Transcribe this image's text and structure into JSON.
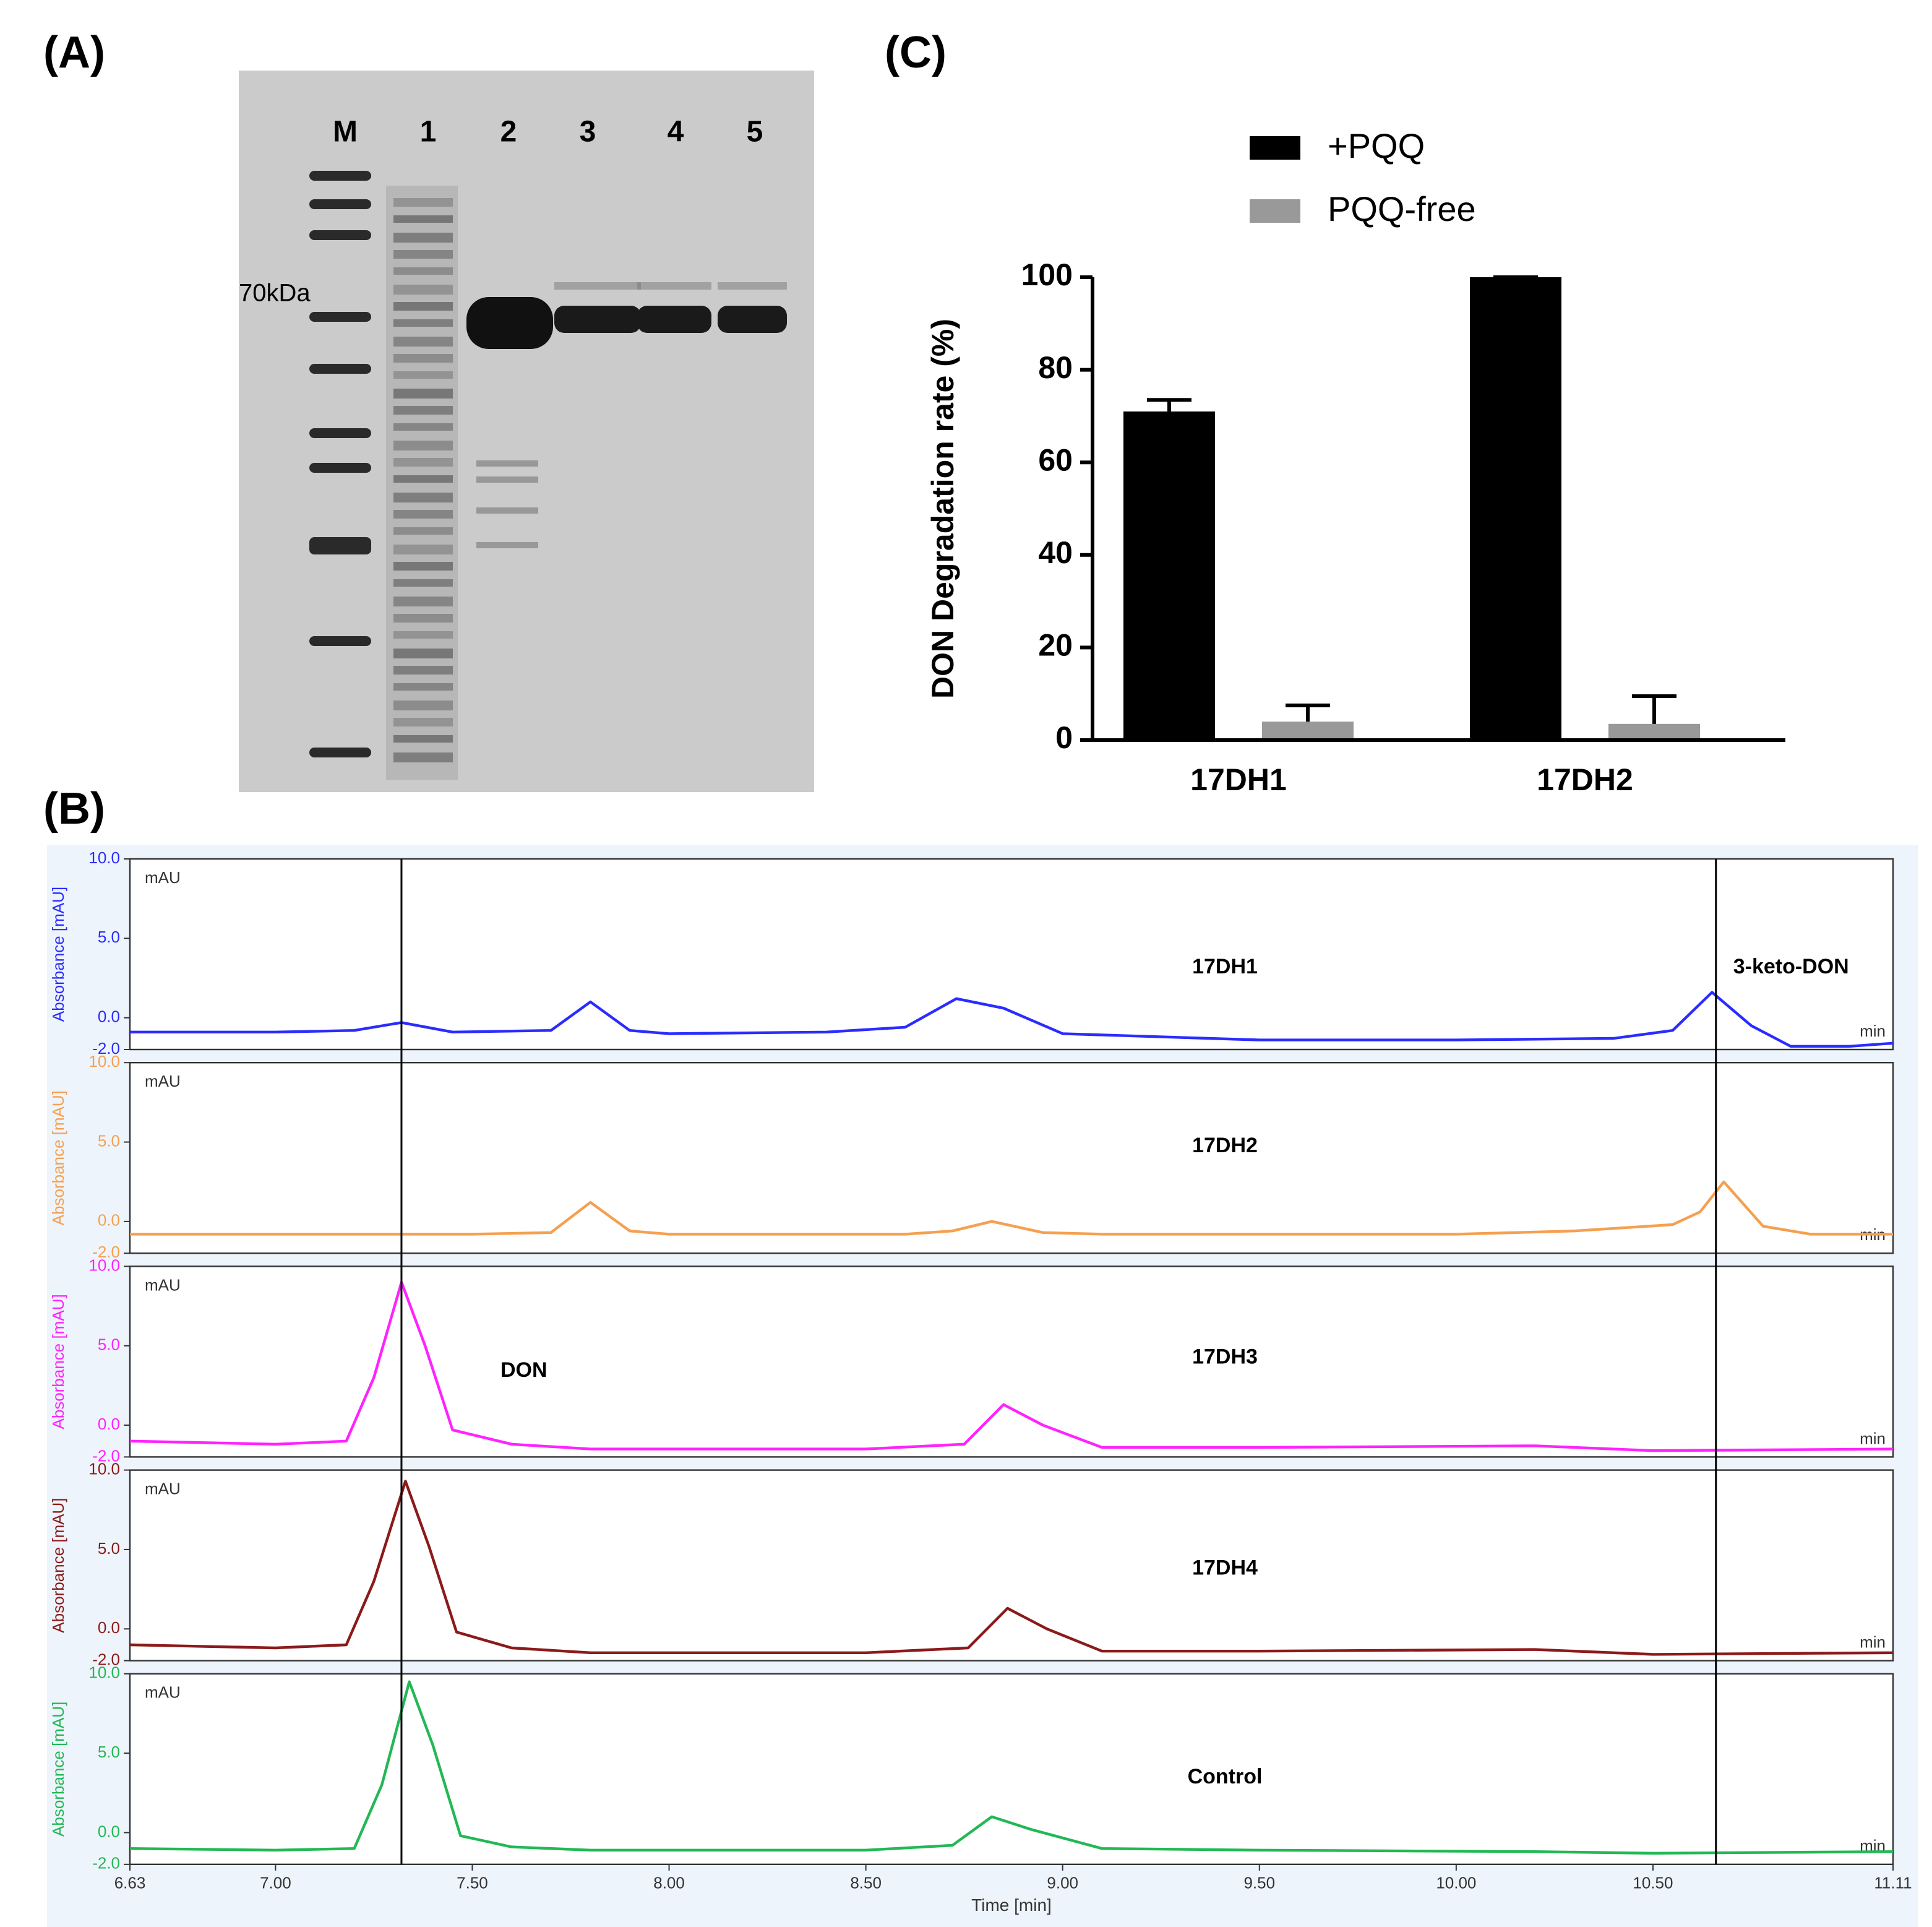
{
  "gel": {
    "panel_label": "(A)",
    "lanes": [
      "M",
      "1",
      "2",
      "3",
      "4",
      "5"
    ],
    "marker_label": "70kDa"
  },
  "chromatogram": {
    "panel_label": "(B)",
    "reference_lines": [
      {
        "x": 7.32,
        "label": "DON"
      },
      {
        "x": 10.66,
        "label": "3-keto-DON"
      }
    ]
  },
  "chart_data": [
    {
      "type": "bar",
      "panel_label": "(C)",
      "ylabel": "DON Degradation rate (%)",
      "categories": [
        "17DH1",
        "17DH2"
      ],
      "series": [
        {
          "name": "+PQQ",
          "color": "#000000",
          "values": [
            71,
            100
          ],
          "errors": [
            2.5,
            0
          ]
        },
        {
          "name": "PQQ-free",
          "color": "#999999",
          "values": [
            4,
            3.5
          ],
          "errors": [
            3.5,
            6
          ]
        }
      ],
      "ylim": [
        0,
        100
      ],
      "yticks": [
        0,
        20,
        40,
        60,
        80,
        100
      ]
    },
    {
      "type": "line",
      "ylabel": "Absorbance [mAU]",
      "unit_label": "mAU",
      "x_unit_label": "min",
      "xlim": [
        6.63,
        11.11
      ],
      "ylim": [
        -2,
        10
      ],
      "yticks": [
        {
          "value": -2,
          "label": "-2.0"
        },
        {
          "value": 0,
          "label": "0.0"
        },
        {
          "value": 5,
          "label": "5.0"
        },
        {
          "value": 10,
          "label": "10.0"
        }
      ],
      "x": [
        6.63,
        7.0,
        7.2,
        7.32,
        7.45,
        7.7,
        7.8,
        7.9,
        8.0,
        8.4,
        8.6,
        8.73,
        8.85,
        9.0,
        9.5,
        10.0,
        10.4,
        10.55,
        10.65,
        10.75,
        10.85,
        11.0,
        11.11
      ],
      "series": [
        {
          "name": "17DH1",
          "color": "#2a2cff",
          "values": [
            -0.9,
            -0.9,
            -0.8,
            -0.3,
            -0.9,
            -0.8,
            1.0,
            -0.8,
            -1.0,
            -0.9,
            -0.6,
            1.2,
            0.6,
            -1.0,
            -1.4,
            -1.4,
            -1.3,
            -0.8,
            1.6,
            -0.5,
            -1.8,
            -1.8,
            -1.6
          ]
        }
      ]
    },
    {
      "type": "line",
      "ylabel": "Absorbance [mAU]",
      "unit_label": "mAU",
      "x_unit_label": "min",
      "xlim": [
        6.63,
        11.11
      ],
      "ylim": [
        -2,
        10
      ],
      "yticks": [
        {
          "value": -2,
          "label": "-2.0"
        },
        {
          "value": 0,
          "label": "0.0"
        },
        {
          "value": 5,
          "label": "5.0"
        },
        {
          "value": 10,
          "label": "10.0"
        }
      ],
      "x": [
        6.63,
        7.5,
        7.7,
        7.8,
        7.9,
        8.0,
        8.6,
        8.72,
        8.82,
        8.95,
        9.1,
        10.0,
        10.3,
        10.55,
        10.62,
        10.68,
        10.78,
        10.9,
        11.11
      ],
      "series": [
        {
          "name": "17DH2",
          "color": "#f5a050",
          "values": [
            -0.8,
            -0.8,
            -0.7,
            1.2,
            -0.6,
            -0.8,
            -0.8,
            -0.6,
            0.0,
            -0.7,
            -0.8,
            -0.8,
            -0.6,
            -0.2,
            0.6,
            2.5,
            -0.3,
            -0.8,
            -0.8
          ]
        }
      ]
    },
    {
      "type": "line",
      "ylabel": "Absorbance [mAU]",
      "unit_label": "mAU",
      "x_unit_label": "min",
      "xlim": [
        6.63,
        11.11
      ],
      "ylim": [
        -2,
        10
      ],
      "yticks": [
        {
          "value": -2,
          "label": "-2.0"
        },
        {
          "value": 0,
          "label": "0.0"
        },
        {
          "value": 5,
          "label": "5.0"
        },
        {
          "value": 10,
          "label": "10.0"
        }
      ],
      "x": [
        6.63,
        7.0,
        7.18,
        7.25,
        7.32,
        7.38,
        7.45,
        7.6,
        7.8,
        8.5,
        8.75,
        8.85,
        8.95,
        9.1,
        9.5,
        10.2,
        10.5,
        11.11
      ],
      "series": [
        {
          "name": "17DH3",
          "color": "#ff22ff",
          "values": [
            -1.0,
            -1.2,
            -1.0,
            3.0,
            9.0,
            5.0,
            -0.3,
            -1.2,
            -1.5,
            -1.5,
            -1.2,
            1.3,
            0.0,
            -1.4,
            -1.4,
            -1.3,
            -1.6,
            -1.5
          ]
        }
      ]
    },
    {
      "type": "line",
      "ylabel": "Absorbance [mAU]",
      "unit_label": "mAU",
      "x_unit_label": "min",
      "xlim": [
        6.63,
        11.11
      ],
      "ylim": [
        -2,
        10
      ],
      "yticks": [
        {
          "value": -2,
          "label": "-2.0"
        },
        {
          "value": 0,
          "label": "0.0"
        },
        {
          "value": 5,
          "label": "5.0"
        },
        {
          "value": 10,
          "label": "10.0"
        }
      ],
      "x": [
        6.63,
        7.0,
        7.18,
        7.25,
        7.33,
        7.39,
        7.46,
        7.6,
        7.8,
        8.5,
        8.76,
        8.86,
        8.96,
        9.1,
        9.5,
        10.2,
        10.5,
        11.11
      ],
      "series": [
        {
          "name": "17DH4",
          "color": "#8b1a1a",
          "values": [
            -1.0,
            -1.2,
            -1.0,
            3.0,
            9.3,
            5.2,
            -0.2,
            -1.2,
            -1.5,
            -1.5,
            -1.2,
            1.3,
            0.0,
            -1.4,
            -1.4,
            -1.3,
            -1.6,
            -1.5
          ]
        }
      ]
    },
    {
      "type": "line",
      "ylabel": "Absorbance [mAU]",
      "unit_label": "mAU",
      "x_unit_label": "min",
      "xlabel": "Time [min]",
      "xlim": [
        6.63,
        11.11
      ],
      "ylim": [
        -2,
        10
      ],
      "yticks": [
        {
          "value": -2,
          "label": "-2.0"
        },
        {
          "value": 0,
          "label": "0.0"
        },
        {
          "value": 5,
          "label": "5.0"
        },
        {
          "value": 10,
          "label": "10.0"
        }
      ],
      "xticks": [
        6.63,
        {
          "value": 7,
          "label": "7.00"
        },
        {
          "value": 7.5,
          "label": "7.50"
        },
        {
          "value": 8,
          "label": "8.00"
        },
        {
          "value": 8.5,
          "label": "8.50"
        },
        {
          "value": 9,
          "label": "9.00"
        },
        {
          "value": 9.5,
          "label": "9.50"
        },
        {
          "value": 10,
          "label": "10.00"
        },
        {
          "value": 10.5,
          "label": "10.50"
        },
        11.11
      ],
      "x": [
        6.63,
        7.0,
        7.2,
        7.27,
        7.34,
        7.4,
        7.47,
        7.6,
        7.8,
        8.5,
        8.72,
        8.82,
        8.92,
        9.1,
        9.5,
        10.2,
        10.5,
        11.11
      ],
      "series": [
        {
          "name": "Control",
          "color": "#22b855",
          "values": [
            -1.0,
            -1.1,
            -1.0,
            3.0,
            9.5,
            5.5,
            -0.2,
            -0.9,
            -1.1,
            -1.1,
            -0.8,
            1.0,
            0.2,
            -1.0,
            -1.1,
            -1.2,
            -1.3,
            -1.2
          ]
        }
      ]
    }
  ]
}
